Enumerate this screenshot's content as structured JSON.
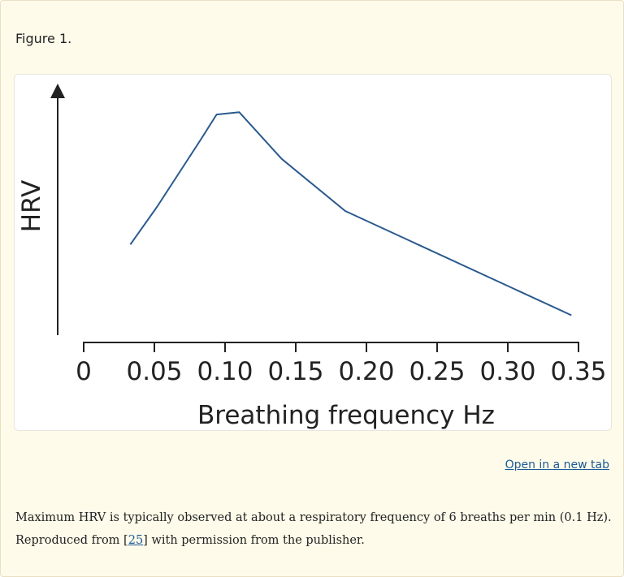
{
  "figure_label": "Figure 1.",
  "open_link": "Open in a new tab",
  "caption": {
    "line1": "Maximum HRV is typically observed at about a respiratory frequency of 6 breaths per min (0.1 Hz).",
    "line2_prefix": "Reproduced from ",
    "ref_open": "[",
    "ref_text": "25",
    "ref_close": "]",
    "line2_suffix": " with permission from the publisher."
  },
  "colors": {
    "panel_bg": "#fefbea",
    "line": "#2a5a8e",
    "axis": "#222222",
    "link": "#1a5a96"
  },
  "chart_data": {
    "type": "line",
    "xlabel": "Breathing frequency Hz",
    "ylabel": "HRV",
    "xlim": [
      0,
      0.35
    ],
    "ylim": [
      0,
      1
    ],
    "x_ticks": [
      0,
      0.05,
      0.1,
      0.15,
      0.2,
      0.25,
      0.3,
      0.35
    ],
    "x_tick_labels": [
      "0",
      "0.05",
      "0.10",
      "0.15",
      "0.20",
      "0.25",
      "0.30",
      "0.35"
    ],
    "y_axis_arrow": true,
    "y_ticks": false,
    "grid": false,
    "series": [
      {
        "x": [
          0.033,
          0.052,
          0.083,
          0.094,
          0.11,
          0.14,
          0.185,
          0.345
        ],
        "y": [
          0.386,
          0.531,
          0.788,
          0.882,
          0.891,
          0.713,
          0.514,
          0.116
        ]
      }
    ]
  }
}
